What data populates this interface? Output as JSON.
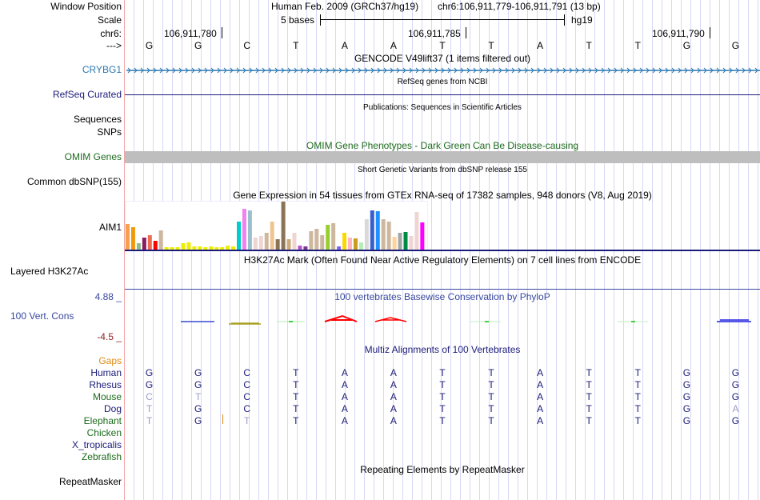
{
  "header": {
    "window_position_label": "Window Position",
    "assembly_text": "Human Feb. 2009 (GRCh37/hg19)",
    "position_text": "chr6:106,911,779-106,911,791 (13 bp)",
    "scale_label": "Scale",
    "scale_text": "5 bases",
    "scale_assembly": "hg19",
    "chrom_label": "chr6:",
    "ticks": [
      "106,911,780",
      "106,911,785",
      "106,911,790"
    ],
    "strand_label": "--->",
    "sequence": [
      "G",
      "G",
      "C",
      "T",
      "A",
      "A",
      "T",
      "T",
      "A",
      "T",
      "T",
      "G",
      "G"
    ]
  },
  "tracks": {
    "gencode": {
      "title": "GENCODE V49lift37 (1 items filtered out)",
      "label": "CRYBG1",
      "color": "#2a78b0"
    },
    "refseq": {
      "title": "RefSeq genes from NCBI",
      "label": "RefSeq Curated",
      "color": "#1b1b7a"
    },
    "publications": {
      "title": "Publications: Sequences in Scientific Articles",
      "labels": [
        "Sequences",
        "SNPs"
      ]
    },
    "omim": {
      "title": "OMIM Gene Phenotypes - Dark Green Can Be Disease-causing",
      "label": "OMIM Genes",
      "color": "#1c6b1c"
    },
    "dbsnp": {
      "title": "Short Genetic Variants from dbSNP release 155",
      "label": "Common dbSNP(155)"
    },
    "gtex": {
      "title": "Gene Expression in 54 tissues from GTEx RNA-seq of 17382 samples, 948 donors (V8, Aug 2019)",
      "label": "AIM1"
    },
    "h3k27ac": {
      "title": "H3K27Ac Mark (Often Found Near Active Regulatory Elements) on 7 cell lines from ENCODE",
      "label": "Layered H3K27Ac"
    },
    "phylop": {
      "title": "100 vertebrates Basewise Conservation by PhyloP",
      "label": "100 Vert. Cons",
      "max": "4.88 _",
      "min": "-4.5 _"
    },
    "multiz": {
      "title": "Multiz Alignments of 100 Vertebrates",
      "gaps_label": "Gaps",
      "species": [
        {
          "name": "Human",
          "color": "#1b1b7a",
          "bases": [
            "G",
            "G",
            "C",
            "T",
            "A",
            "A",
            "T",
            "T",
            "A",
            "T",
            "T",
            "G",
            "G"
          ],
          "dim": []
        },
        {
          "name": "Rhesus",
          "color": "#1b1b7a",
          "bases": [
            "G",
            "G",
            "C",
            "T",
            "A",
            "A",
            "T",
            "T",
            "A",
            "T",
            "T",
            "G",
            "G"
          ],
          "dim": []
        },
        {
          "name": "Mouse",
          "color": "#1c6b1c",
          "bases": [
            "C",
            "T",
            "C",
            "T",
            "A",
            "A",
            "T",
            "T",
            "A",
            "T",
            "T",
            "G",
            "G"
          ],
          "dim": [
            0,
            1
          ]
        },
        {
          "name": "Dog",
          "color": "#1b1b7a",
          "bases": [
            "T",
            "G",
            "C",
            "T",
            "A",
            "A",
            "T",
            "T",
            "A",
            "T",
            "T",
            "G",
            "A"
          ],
          "dim": [
            0,
            12
          ]
        },
        {
          "name": "Elephant",
          "color": "#1c6b1c",
          "bases": [
            "T",
            "G",
            "T",
            "T",
            "A",
            "A",
            "T",
            "T",
            "A",
            "T",
            "T",
            "G",
            "G"
          ],
          "dim": [
            0,
            2
          ]
        },
        {
          "name": "Chicken",
          "color": "#1c6b1c",
          "bases": [],
          "dim": []
        },
        {
          "name": "X_tropicalis",
          "color": "#1b1b7a",
          "bases": [],
          "dim": []
        },
        {
          "name": "Zebrafish",
          "color": "#1c6b1c",
          "bases": [],
          "dim": []
        }
      ]
    },
    "repeatmasker": {
      "title": "Repeating Elements by RepeatMasker",
      "label": "RepeatMasker"
    }
  },
  "chart_data": {
    "type": "bar",
    "title": "Gene Expression in 54 tissues from GTEx RNA-seq of 17382 samples, 948 donors (V8, Aug 2019)",
    "xlabel": "",
    "ylabel": "",
    "categories_count": 54,
    "values": [
      32,
      28,
      8,
      15,
      18,
      11,
      24,
      3,
      3,
      3,
      8,
      9,
      4,
      4,
      3,
      4,
      3,
      3,
      5,
      4,
      35,
      51,
      49,
      15,
      17,
      21,
      35,
      13,
      60,
      13,
      21,
      5,
      4,
      23,
      26,
      18,
      31,
      33,
      4,
      21,
      15,
      14,
      9,
      38,
      49,
      48,
      38,
      35,
      16,
      21,
      22,
      17,
      47,
      34
    ],
    "colors": [
      "#f7a04f",
      "#ef9a0d",
      "#8fbc8f",
      "#8b1c62",
      "#ee6a50",
      "#ff0000",
      "#cdb79e",
      "#eeee00",
      "#eeee00",
      "#eeee00",
      "#eeee00",
      "#eeee00",
      "#eeee00",
      "#eeee00",
      "#eeee00",
      "#eeee00",
      "#eeee00",
      "#eeee00",
      "#eeee00",
      "#eeee00",
      "#00cdcd",
      "#ee82ee",
      "#9ac0cd",
      "#eed5d2",
      "#eed5d2",
      "#cdb79e",
      "#eec591",
      "#8b7355",
      "#8b7355",
      "#cdaa7d",
      "#eed5d2",
      "#b452cd",
      "#7a378b",
      "#cdb79e",
      "#cdb79e",
      "#cdb79e",
      "#9acd32",
      "#cdb79e",
      "#7b68ee",
      "#ffd700",
      "#ffb6c1",
      "#cd9b1d",
      "#b4eeb4",
      "#d9d9d9",
      "#3a5fcd",
      "#1e90ff",
      "#cdb79e",
      "#cdb79e",
      "#ffd39b",
      "#a6a6a6",
      "#008b45",
      "#eed5d2",
      "#eed5d2",
      "#ff00ff"
    ],
    "value_units": "relative bar height"
  }
}
